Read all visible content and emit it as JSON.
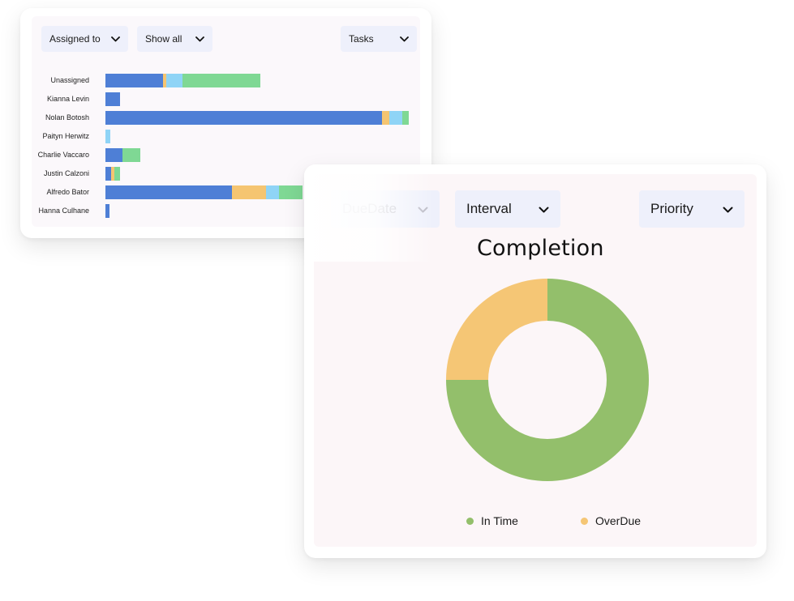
{
  "tasks_panel": {
    "filters": {
      "assigned_to": "Assigned to",
      "show_all": "Show all",
      "tasks": "Tasks"
    },
    "colors": {
      "blue": "#4e7fd6",
      "orange": "#f5c571",
      "light_blue": "#8fd4f6",
      "green": "#7fd894"
    }
  },
  "completion_panel": {
    "filters": {
      "due_date": "DueDate",
      "interval": "Interval",
      "priority": "Priority"
    },
    "title": "Completion"
  },
  "chart_data": [
    {
      "type": "bar",
      "orientation": "horizontal",
      "stacked": true,
      "categories": [
        "Unassigned",
        "Kianna Levin",
        "Nolan Botosh",
        "Paityn Herwitz",
        "Charlie Vaccaro",
        "Justin Calzoni",
        "Alfredo Bator",
        "Hanna Culhane"
      ],
      "series": [
        {
          "color": "#4e7fd6",
          "values": [
            70,
            18,
            337,
            0,
            21,
            7,
            154,
            5
          ]
        },
        {
          "color": "#f5c571",
          "values": [
            4,
            0,
            8,
            0,
            0,
            4,
            41,
            0
          ]
        },
        {
          "color": "#8fd4f6",
          "values": [
            20,
            0,
            16,
            6,
            0,
            0,
            16,
            0
          ]
        },
        {
          "color": "#7fd894",
          "values": [
            94,
            0,
            8,
            0,
            21,
            7,
            29,
            0
          ]
        }
      ],
      "xlim": [
        0,
        375
      ]
    },
    {
      "type": "pie",
      "donut": true,
      "title": "Completion",
      "labels": [
        "In Time",
        "OverDue"
      ],
      "values": [
        75,
        25
      ],
      "colors": [
        "#93bf6b",
        "#f5c675"
      ],
      "legend": "bottom"
    }
  ]
}
